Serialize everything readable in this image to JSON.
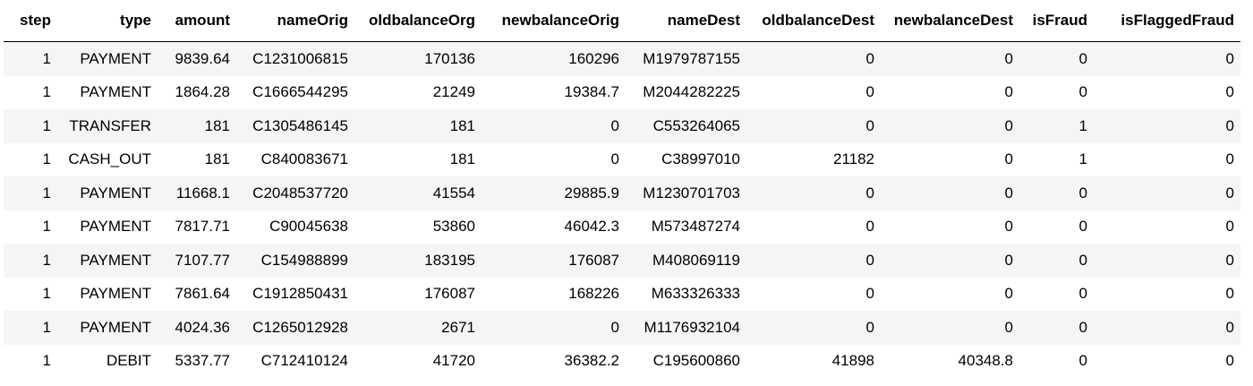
{
  "table": {
    "columns": [
      "step",
      "type",
      "amount",
      "nameOrig",
      "oldbalanceOrg",
      "newbalanceOrig",
      "nameDest",
      "oldbalanceDest",
      "newbalanceDest",
      "isFraud",
      "isFlaggedFraud"
    ],
    "rows": [
      [
        "1",
        "PAYMENT",
        "9839.64",
        "C1231006815",
        "170136",
        "160296",
        "M1979787155",
        "0",
        "0",
        "0",
        "0"
      ],
      [
        "1",
        "PAYMENT",
        "1864.28",
        "C1666544295",
        "21249",
        "19384.7",
        "M2044282225",
        "0",
        "0",
        "0",
        "0"
      ],
      [
        "1",
        "TRANSFER",
        "181",
        "C1305486145",
        "181",
        "0",
        "C553264065",
        "0",
        "0",
        "1",
        "0"
      ],
      [
        "1",
        "CASH_OUT",
        "181",
        "C840083671",
        "181",
        "0",
        "C38997010",
        "21182",
        "0",
        "1",
        "0"
      ],
      [
        "1",
        "PAYMENT",
        "11668.1",
        "C2048537720",
        "41554",
        "29885.9",
        "M1230701703",
        "0",
        "0",
        "0",
        "0"
      ],
      [
        "1",
        "PAYMENT",
        "7817.71",
        "C90045638",
        "53860",
        "46042.3",
        "M573487274",
        "0",
        "0",
        "0",
        "0"
      ],
      [
        "1",
        "PAYMENT",
        "7107.77",
        "C154988899",
        "183195",
        "176087",
        "M408069119",
        "0",
        "0",
        "0",
        "0"
      ],
      [
        "1",
        "PAYMENT",
        "7861.64",
        "C1912850431",
        "176087",
        "168226",
        "M633326333",
        "0",
        "0",
        "0",
        "0"
      ],
      [
        "1",
        "PAYMENT",
        "4024.36",
        "C1265012928",
        "2671",
        "0",
        "M1176932104",
        "0",
        "0",
        "0",
        "0"
      ],
      [
        "1",
        "DEBIT",
        "5337.77",
        "C712410124",
        "41720",
        "36382.2",
        "C195600860",
        "41898",
        "40348.8",
        "0",
        "0"
      ]
    ]
  }
}
